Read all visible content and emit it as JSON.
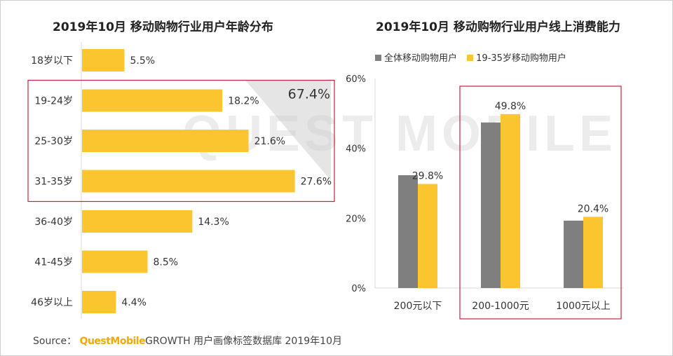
{
  "watermark": "QUEST MOBILE",
  "source": {
    "prefix": "Source：",
    "brand": "QuestMobile",
    "text": "GROWTH 用户画像标签数据库 2019年10月"
  },
  "colors": {
    "gray": "#7f7f7f",
    "yellow": "#fbc530",
    "highlight": "#c0243c"
  },
  "chart_data": [
    {
      "type": "bar",
      "orientation": "horizontal",
      "title": "2019年10月 移动购物行业用户年龄分布",
      "categories": [
        "18岁以下",
        "19-24岁",
        "25-30岁",
        "31-35岁",
        "36-40岁",
        "41-45岁",
        "46岁以上"
      ],
      "values": [
        5.5,
        18.2,
        21.6,
        27.6,
        14.3,
        8.5,
        4.4
      ],
      "value_labels": [
        "5.5%",
        "18.2%",
        "21.6%",
        "27.6%",
        "14.3%",
        "8.5%",
        "4.4%"
      ],
      "highlight": {
        "categories": [
          "19-24岁",
          "25-30岁",
          "31-35岁"
        ],
        "label": "67.4%"
      },
      "unit": "%"
    },
    {
      "type": "bar",
      "title": "2019年10月 移动购物行业用户线上消费能力",
      "categories": [
        "200元以下",
        "200-1000元",
        "1000元以上"
      ],
      "series": [
        {
          "name": "全体移动购物用户",
          "color": "#7f7f7f",
          "values": [
            32.3,
            47.4,
            19.3
          ]
        },
        {
          "name": "19-35岁移动购物用户",
          "color": "#fbc530",
          "values": [
            29.8,
            49.8,
            20.4
          ],
          "value_labels": [
            "29.8%",
            "49.8%",
            "20.4%"
          ]
        }
      ],
      "yticks": [
        "0%",
        "20%",
        "40%",
        "60%"
      ],
      "ylim": [
        0,
        60
      ],
      "highlight": {
        "category": "200-1000元"
      },
      "legend": "top"
    }
  ]
}
